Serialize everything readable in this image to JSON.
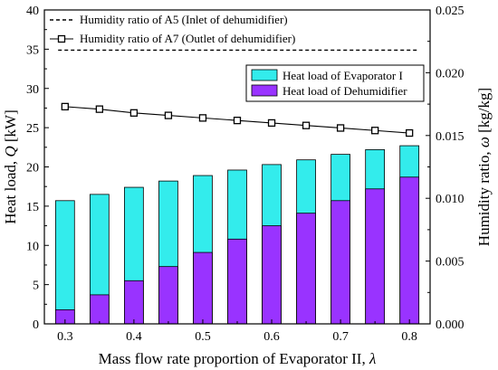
{
  "chart_data": {
    "type": "bar",
    "x": [
      0.3,
      0.35,
      0.4,
      0.45,
      0.5,
      0.55,
      0.6,
      0.65,
      0.7,
      0.75,
      0.8
    ],
    "x_ticks": [
      "0.3",
      "0.4",
      "0.5",
      "0.6",
      "0.7",
      "0.8"
    ],
    "xlim": [
      0.27,
      0.83
    ],
    "xlabel": {
      "main": "Mass flow rate proportion of Evaporator II, ",
      "var": "λ"
    },
    "y_left": {
      "label": {
        "pre": "Heat load, ",
        "var": "Q",
        "post": " [kW]"
      },
      "lim": [
        0,
        40
      ],
      "ticks": [
        "0",
        "5",
        "10",
        "15",
        "20",
        "25",
        "30",
        "35",
        "40"
      ]
    },
    "y_right": {
      "label": {
        "pre": "Humidity ratio, ",
        "var": "ω",
        "post": " [kg/kg]"
      },
      "lim": [
        0,
        0.025
      ],
      "ticks": [
        "0.000",
        "0.005",
        "0.010",
        "0.015",
        "0.020",
        "0.025"
      ]
    },
    "bar_series": [
      {
        "name": "Heat load of Evaporator I",
        "color": "#33ecec",
        "values": [
          15.7,
          16.5,
          17.4,
          18.2,
          18.9,
          19.6,
          20.3,
          20.9,
          21.6,
          22.2,
          22.7
        ]
      },
      {
        "name": "Heat load of Dehumidifier",
        "color": "#9933ff",
        "values": [
          1.8,
          3.7,
          5.5,
          7.3,
          9.1,
          10.8,
          12.5,
          14.1,
          15.7,
          17.2,
          18.7
        ]
      }
    ],
    "line_series": [
      {
        "name": "Humidity ratio of A5 (Inlet of dehumidifier)",
        "style": "dashed",
        "axis": "right",
        "values": [
          0.0218,
          0.0218,
          0.0218,
          0.0218,
          0.0218,
          0.0218,
          0.0218,
          0.0218,
          0.0218,
          0.0218,
          0.0218
        ]
      },
      {
        "name": "Humidity ratio of A7 (Outlet of dehumidifier)",
        "style": "solid-square-markers",
        "axis": "right",
        "values": [
          0.0173,
          0.0171,
          0.0168,
          0.0166,
          0.0164,
          0.0162,
          0.016,
          0.0158,
          0.0156,
          0.0154,
          0.0152
        ]
      }
    ]
  }
}
